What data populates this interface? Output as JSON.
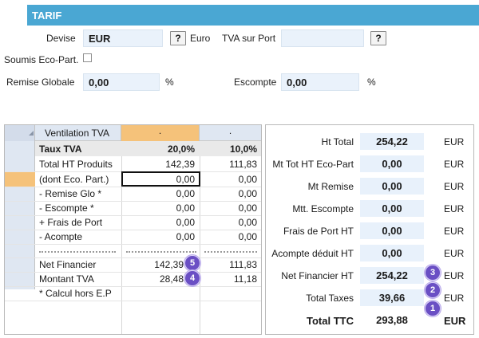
{
  "header": {
    "title": "TARIF"
  },
  "currency": {
    "label": "Devise",
    "value": "EUR",
    "help": "?",
    "unit": "Euro"
  },
  "tva_port": {
    "label": "TVA sur Port",
    "value": "",
    "help": "?"
  },
  "eco": {
    "label": "Soumis Eco-Part."
  },
  "remise": {
    "label": "Remise Globale",
    "value": "0,00",
    "unit": "%"
  },
  "escompte": {
    "label": "Escompte",
    "value": "0,00",
    "unit": "%"
  },
  "grid": {
    "header": {
      "label": "Ventilation TVA",
      "col1": ".",
      "col2": "."
    },
    "rows": [
      {
        "label": "Taux TVA",
        "v1": "20,0%",
        "v2": "10,0%"
      },
      {
        "label": "Total HT Produits",
        "v1": "142,39",
        "v2": "111,83"
      },
      {
        "label": "(dont Eco. Part.)",
        "v1": "0,00",
        "v2": "0,00"
      },
      {
        "label": "- Remise Glo *",
        "v1": "0,00",
        "v2": "0,00"
      },
      {
        "label": "- Escompte *",
        "v1": "0,00",
        "v2": "0,00"
      },
      {
        "label": "+ Frais de Port",
        "v1": "0,00",
        "v2": "0,00"
      },
      {
        "label": "- Acompte",
        "v1": "0,00",
        "v2": "0,00"
      },
      {
        "label": "Net Financier",
        "v1": "142,39",
        "v2": "111,83"
      },
      {
        "label": "Montant TVA",
        "v1": "28,48",
        "v2": "11,18"
      },
      {
        "label": "* Calcul hors E.P",
        "v1": "",
        "v2": ""
      }
    ]
  },
  "totals": {
    "currency": "EUR",
    "rows": [
      {
        "label": "Ht Total",
        "value": "254,22"
      },
      {
        "label": "Mt Tot HT Eco-Part",
        "value": "0,00"
      },
      {
        "label": "Mt Remise",
        "value": "0,00"
      },
      {
        "label": "Mtt. Escompte",
        "value": "0,00"
      },
      {
        "label": "Frais de Port HT",
        "value": "0,00"
      },
      {
        "label": "Acompte déduit  HT",
        "value": "0,00"
      },
      {
        "label": "Net Financier HT",
        "value": "254,22"
      },
      {
        "label": "Total Taxes",
        "value": "39,66"
      },
      {
        "label": "Total TTC",
        "value": "293,88"
      }
    ]
  },
  "badges": {
    "b1": "1",
    "b2": "2",
    "b3": "3",
    "b4": "4",
    "b5": "5"
  },
  "colors": {
    "header": "#4aa7d3",
    "grid_header_accent": "#f5c27a",
    "badge": "#6a4fc4",
    "field_bg": "#eaf2fb"
  }
}
